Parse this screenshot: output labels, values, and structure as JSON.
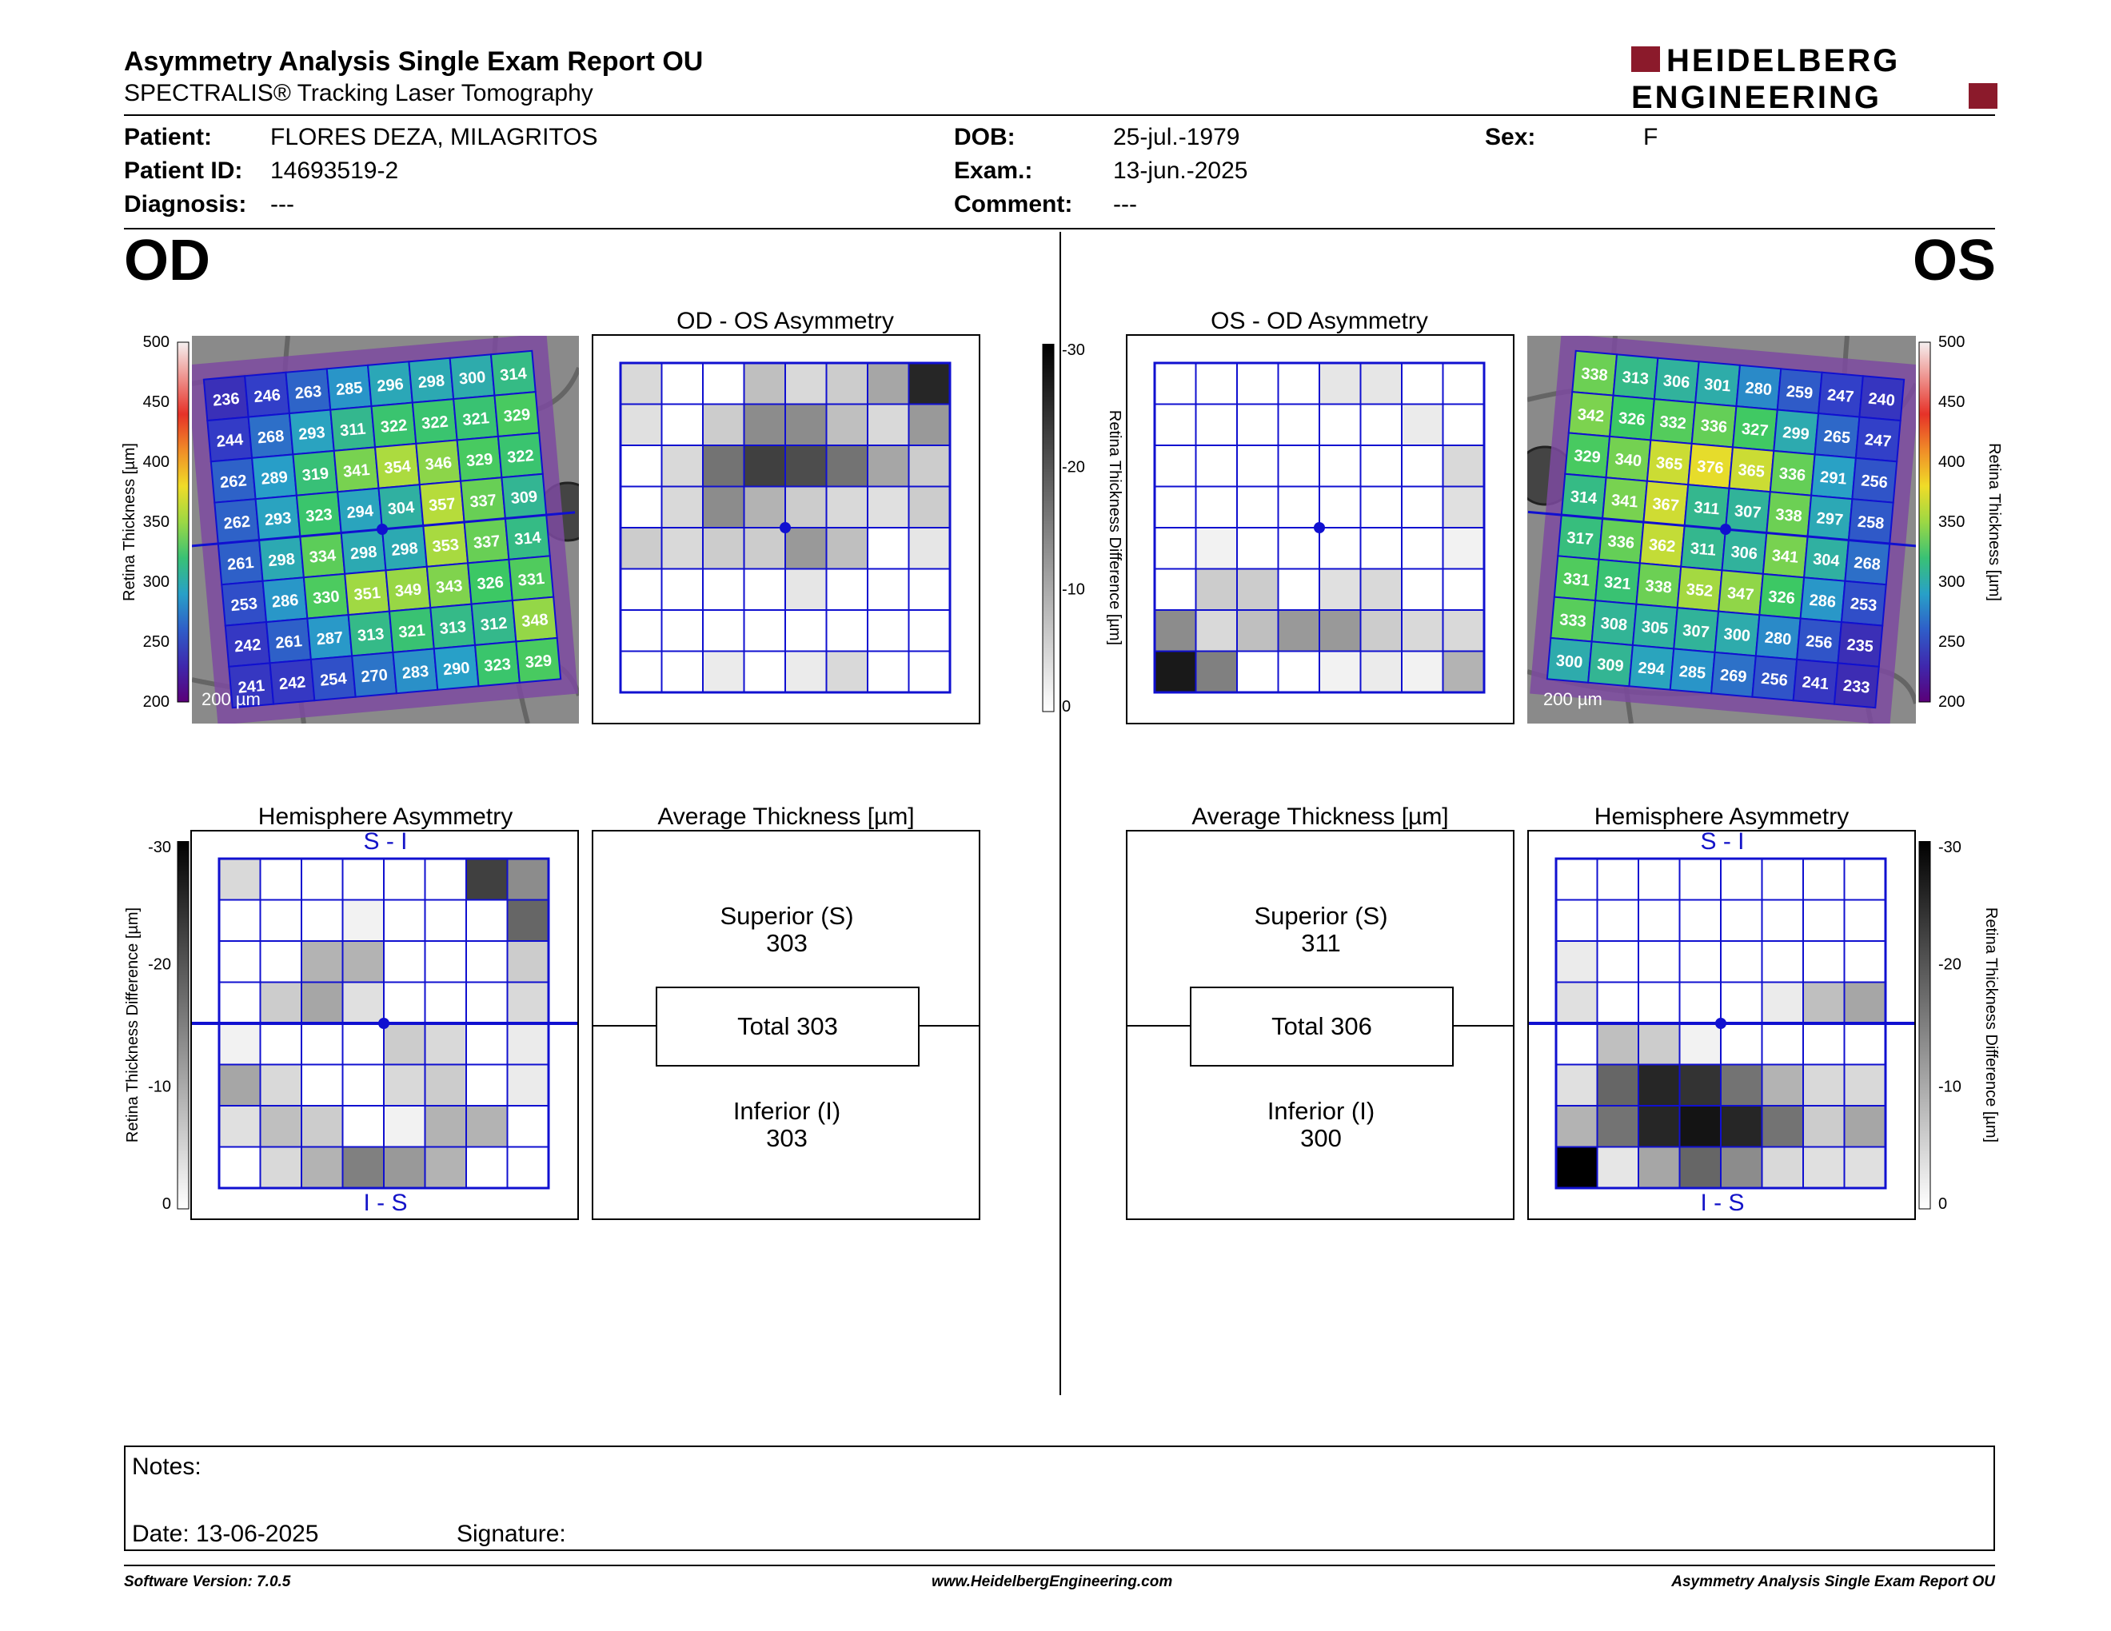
{
  "header": {
    "title": "Asymmetry Analysis Single Exam Report OU",
    "subtitle": "SPECTRALIS® Tracking Laser Tomography",
    "logo_line1": "HEIDELBERG",
    "logo_line2": "ENGINEERING"
  },
  "patient": {
    "patient_label": "Patient:",
    "patient_value": "FLORES DEZA, MILAGRITOS",
    "id_label": "Patient ID:",
    "id_value": "14693519-2",
    "diagnosis_label": "Diagnosis:",
    "diagnosis_value": "---",
    "dob_label": "DOB:",
    "dob_value": "25-jul.-1979",
    "exam_label": "Exam.:",
    "exam_value": "13-jun.-2025",
    "comment_label": "Comment:",
    "comment_value": "---",
    "sex_label": "Sex:",
    "sex_value": "F"
  },
  "eyes": {
    "od": "OD",
    "os": "OS"
  },
  "colors": {
    "grid_blue": "#1010d0",
    "label_blue": "#1414c8",
    "logo_red": "#8b1a2b"
  },
  "thickness_scale": {
    "axis_label": "Retina Thickness [µm]",
    "ticks": [
      "500",
      "450",
      "400",
      "350",
      "300",
      "250",
      "200"
    ]
  },
  "difference_scale": {
    "axis_label": "Retina Thickness Difference [µm]",
    "ticks": [
      "-30",
      "-20",
      "-10",
      "0"
    ]
  },
  "scale_bar": "200 µm",
  "od": {
    "thickness_grid": [
      [
        236,
        246,
        263,
        285,
        296,
        298,
        300,
        314
      ],
      [
        244,
        268,
        293,
        311,
        322,
        322,
        321,
        329
      ],
      [
        262,
        289,
        319,
        341,
        354,
        346,
        329,
        322
      ],
      [
        262,
        293,
        323,
        294,
        304,
        357,
        337,
        309
      ],
      [
        261,
        298,
        334,
        298,
        298,
        353,
        337,
        314
      ],
      [
        253,
        286,
        330,
        351,
        349,
        343,
        326,
        331
      ],
      [
        242,
        261,
        287,
        313,
        321,
        313,
        312,
        348
      ],
      [
        241,
        242,
        254,
        270,
        283,
        290,
        323,
        329
      ]
    ],
    "asymmetry_title": "OD - OS Asymmetry",
    "asymmetry_grid": [
      [
        0.15,
        0,
        0,
        0.25,
        0.15,
        0.2,
        0.35,
        0.85
      ],
      [
        0.12,
        0,
        0.2,
        0.45,
        0.45,
        0.25,
        0.15,
        0.4
      ],
      [
        0,
        0.15,
        0.55,
        0.75,
        0.7,
        0.55,
        0.35,
        0.2
      ],
      [
        0,
        0.15,
        0.45,
        0.3,
        0.2,
        0.15,
        0.12,
        0.2
      ],
      [
        0.2,
        0.15,
        0.2,
        0.2,
        0.4,
        0.25,
        0,
        0.1
      ],
      [
        0,
        0,
        0,
        0,
        0.1,
        0,
        0,
        0
      ],
      [
        0,
        0,
        0,
        0,
        0,
        0,
        0,
        0
      ],
      [
        0,
        0,
        0.08,
        0,
        0.08,
        0.15,
        0,
        0
      ]
    ],
    "hemi_title": "Hemisphere Asymmetry",
    "hemi_top": "S - I",
    "hemi_bottom": "I - S",
    "hemi_grid": [
      [
        0.15,
        0,
        0,
        0,
        0,
        0,
        0.75,
        0.45
      ],
      [
        0,
        0,
        0,
        0.05,
        0,
        0,
        0,
        0.6
      ],
      [
        0,
        0,
        0.3,
        0.3,
        0,
        0,
        0,
        0.2
      ],
      [
        0,
        0.2,
        0.35,
        0.12,
        0,
        0,
        0,
        0.15
      ],
      [
        0.05,
        0,
        0,
        0,
        0.2,
        0.15,
        0,
        0.08
      ],
      [
        0.35,
        0.15,
        0,
        0,
        0.15,
        0.2,
        0,
        0.08
      ],
      [
        0.12,
        0.25,
        0.2,
        0,
        0.05,
        0.3,
        0.3,
        0
      ],
      [
        0,
        0.15,
        0.3,
        0.5,
        0.4,
        0.3,
        0,
        0
      ]
    ],
    "avg_title": "Average Thickness [µm]",
    "superior_label": "Superior (S)",
    "superior_value": "303",
    "total_label": "Total 303",
    "inferior_label": "Inferior (I)",
    "inferior_value": "303"
  },
  "os": {
    "thickness_grid": [
      [
        338,
        313,
        306,
        301,
        280,
        259,
        247,
        240
      ],
      [
        342,
        326,
        332,
        336,
        327,
        299,
        265,
        247
      ],
      [
        329,
        340,
        365,
        376,
        365,
        336,
        291,
        256
      ],
      [
        314,
        341,
        367,
        311,
        307,
        338,
        297,
        258
      ],
      [
        317,
        336,
        362,
        311,
        306,
        341,
        304,
        268
      ],
      [
        331,
        321,
        338,
        352,
        347,
        326,
        286,
        253
      ],
      [
        333,
        308,
        305,
        307,
        300,
        280,
        256,
        235
      ],
      [
        300,
        309,
        294,
        285,
        269,
        256,
        241,
        233
      ]
    ],
    "asymmetry_title": "OS - OD Asymmetry",
    "asymmetry_grid": [
      [
        0,
        0,
        0,
        0,
        0.1,
        0.1,
        0,
        0
      ],
      [
        0,
        0,
        0,
        0,
        0,
        0,
        0.08,
        0
      ],
      [
        0,
        0,
        0,
        0,
        0,
        0,
        0,
        0.15
      ],
      [
        0,
        0,
        0,
        0,
        0,
        0,
        0,
        0.12
      ],
      [
        0,
        0.05,
        0,
        0,
        0,
        0,
        0,
        0.05
      ],
      [
        0,
        0.2,
        0.2,
        0,
        0.12,
        0.15,
        0,
        0
      ],
      [
        0.45,
        0.15,
        0.25,
        0.4,
        0.4,
        0.2,
        0.15,
        0.15
      ],
      [
        0.9,
        0.5,
        0,
        0,
        0.05,
        0.08,
        0.05,
        0.3
      ]
    ],
    "hemi_title": "Hemisphere Asymmetry",
    "hemi_top": "S - I",
    "hemi_bottom": "I - S",
    "hemi_grid": [
      [
        0,
        0,
        0,
        0,
        0,
        0,
        0,
        0
      ],
      [
        0,
        0,
        0,
        0,
        0,
        0,
        0,
        0
      ],
      [
        0.08,
        0,
        0,
        0,
        0,
        0,
        0,
        0
      ],
      [
        0.12,
        0,
        0,
        0,
        0,
        0.08,
        0.25,
        0.35
      ],
      [
        0,
        0.25,
        0.2,
        0.05,
        0,
        0,
        0,
        0
      ],
      [
        0.12,
        0.6,
        0.85,
        0.8,
        0.55,
        0.3,
        0.15,
        0.15
      ],
      [
        0.3,
        0.55,
        0.85,
        0.92,
        0.85,
        0.55,
        0.2,
        0.35
      ],
      [
        1.0,
        0.1,
        0.35,
        0.6,
        0.45,
        0.15,
        0.12,
        0.12
      ]
    ],
    "avg_title": "Average Thickness [µm]",
    "superior_label": "Superior (S)",
    "superior_value": "311",
    "total_label": "Total 306",
    "inferior_label": "Inferior (I)",
    "inferior_value": "300"
  },
  "notes": {
    "notes_label": "Notes:",
    "date_label": "Date: 13-06-2025",
    "signature_label": "Signature:"
  },
  "footer": {
    "software": "Software Version: 7.0.5",
    "website": "www.HeidelbergEngineering.com",
    "report": "Asymmetry Analysis Single Exam Report OU"
  }
}
